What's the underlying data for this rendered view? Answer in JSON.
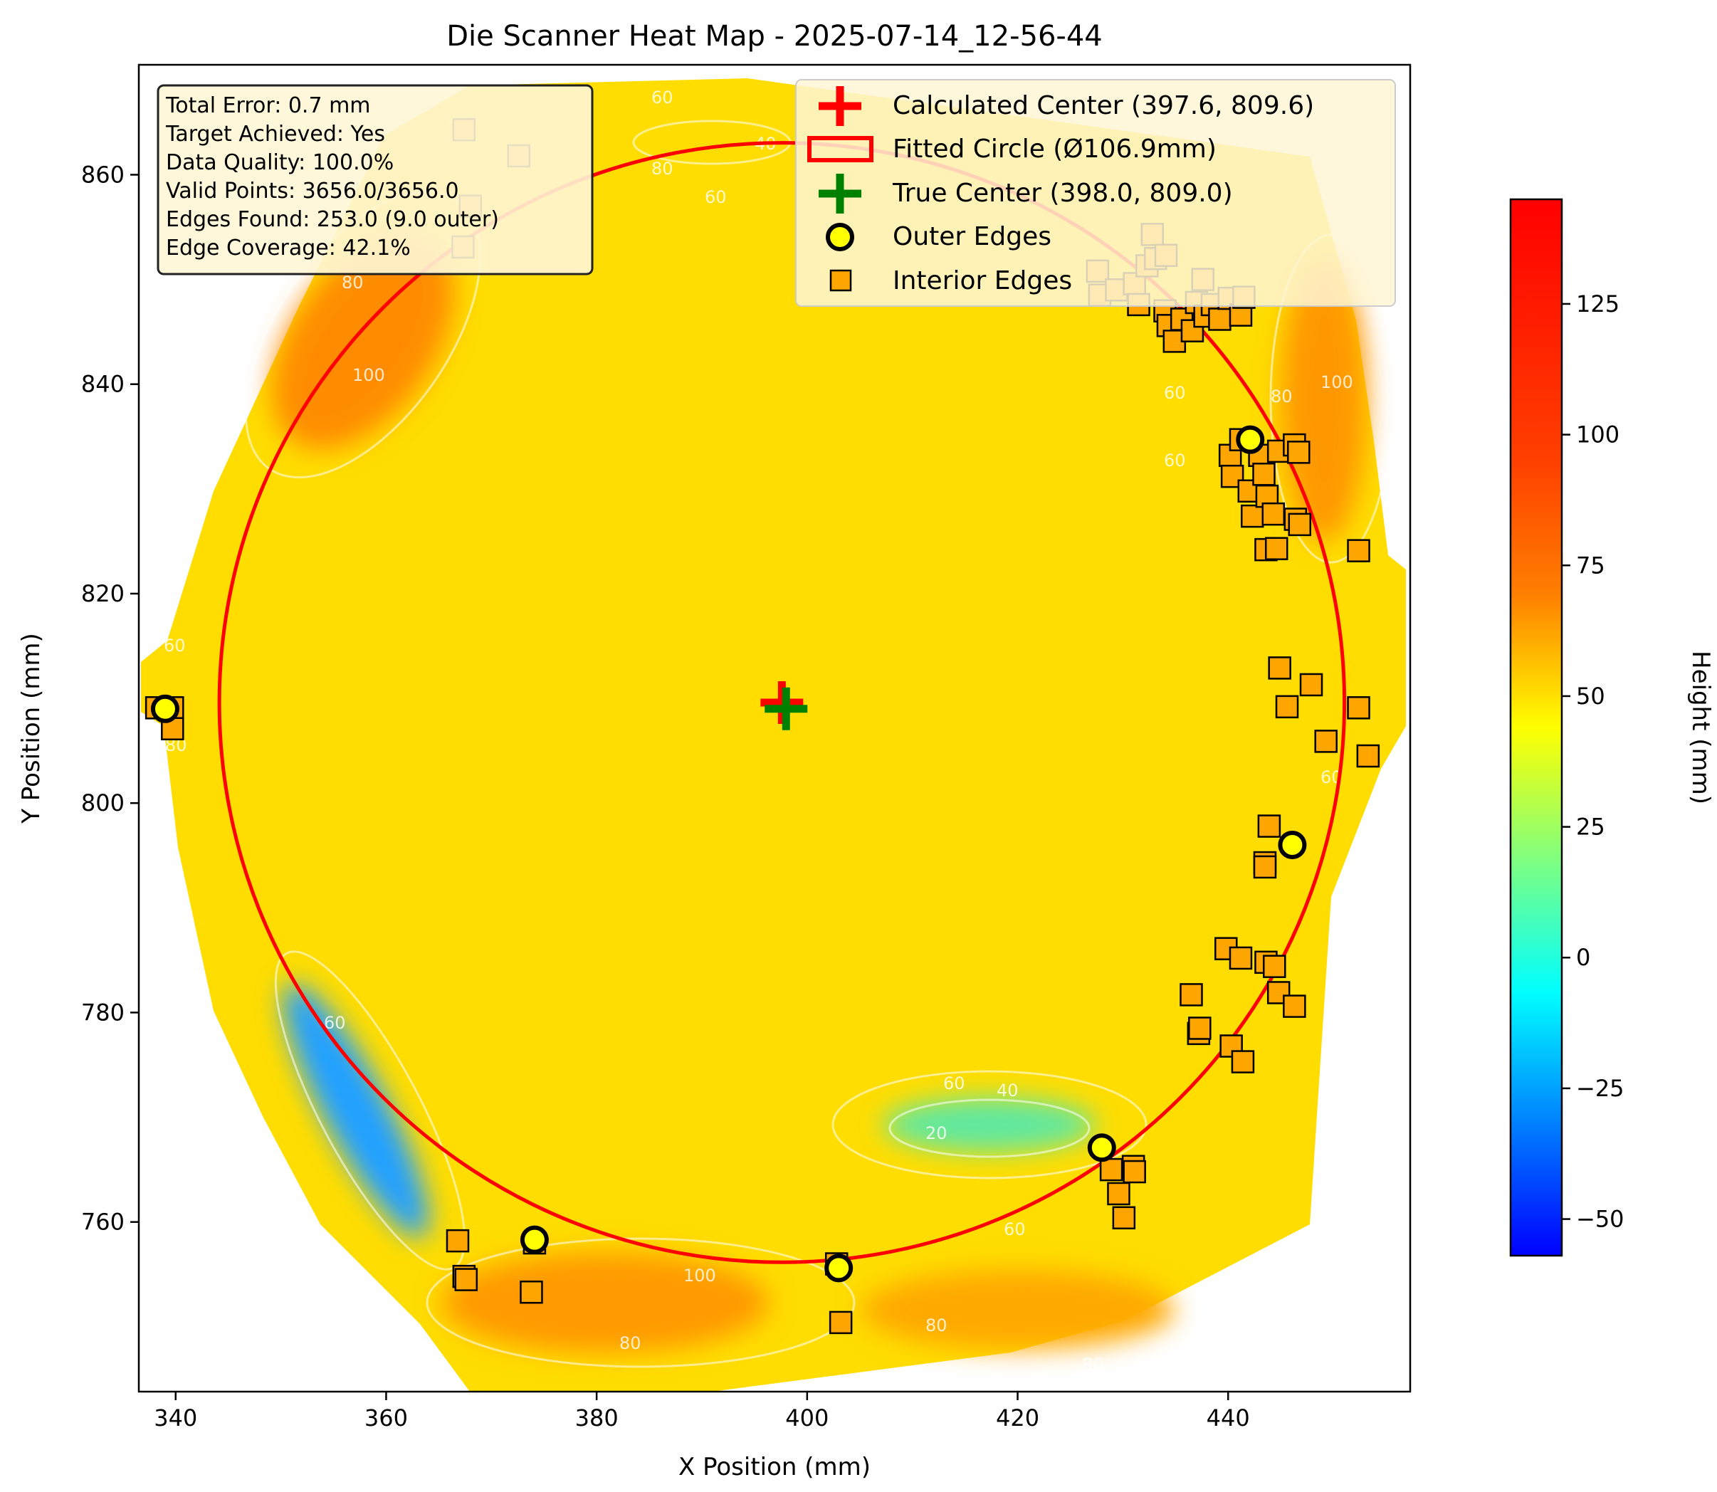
{
  "chart_data": {
    "type": "heatmap",
    "title": "Die Scanner Heat Map - 2025-07-14_12-56-44",
    "xlabel": "X Position (mm)",
    "ylabel": "Y Position (mm)",
    "xlim": [
      336.5,
      457.3
    ],
    "ylim": [
      743.8,
      870.5
    ],
    "x_ticks": [
      340,
      360,
      380,
      400,
      420,
      440
    ],
    "y_ticks": [
      760,
      780,
      800,
      820,
      840,
      860
    ],
    "grid": false,
    "legend_position": "top-right",
    "colorbar": {
      "label": "Height (mm)",
      "colormap": "jet",
      "range": [
        -57,
        145
      ],
      "ticks": [
        -50,
        -25,
        0,
        25,
        50,
        75,
        100,
        125
      ]
    },
    "heightmap_summary": {
      "base_height": 60,
      "high_regions": [
        {
          "x": 358,
          "y": 846,
          "height": 105
        },
        {
          "x": 447,
          "y": 840,
          "height": 100
        },
        {
          "x": 388,
          "y": 753,
          "height": 100
        },
        {
          "x": 428,
          "y": 754,
          "height": 85
        }
      ],
      "low_regions": [
        {
          "x": 418,
          "y": 769,
          "height": 15
        },
        {
          "x": 356,
          "y": 768,
          "height": -45
        }
      ]
    },
    "contour_levels": [
      20,
      40,
      60,
      80,
      100
    ],
    "stats_box": [
      "Total Error: 0.7 mm",
      "Target Achieved: Yes",
      "Data Quality: 100.0%",
      "Valid Points: 3656.0/3656.0",
      "Edges Found: 253.0 (9.0 outer)",
      "Edge Coverage: 42.1%"
    ],
    "legend": [
      "Calculated Center (397.6, 809.6)",
      "Fitted Circle (Ø106.9mm)",
      "True Center (398.0, 809.0)",
      "Outer Edges",
      "Interior Edges"
    ],
    "calculated_center": {
      "x": 397.6,
      "y": 809.6
    },
    "true_center": {
      "x": 398.0,
      "y": 809.0
    },
    "fitted_circle": {
      "cx": 397.6,
      "cy": 809.6,
      "diameter": 106.9
    },
    "outer_edges": [
      {
        "x": 339.0,
        "y": 809.0
      },
      {
        "x": 374.1,
        "y": 758.3
      },
      {
        "x": 403.0,
        "y": 755.6
      },
      {
        "x": 428.0,
        "y": 767.1
      },
      {
        "x": 446.1,
        "y": 796.0
      },
      {
        "x": 442.1,
        "y": 834.7
      }
    ],
    "interior_edges": [
      {
        "x": 338.2,
        "y": 809.1
      },
      {
        "x": 339.7,
        "y": 809.1
      },
      {
        "x": 339.7,
        "y": 807.1
      },
      {
        "x": 366.8,
        "y": 758.2
      },
      {
        "x": 367.4,
        "y": 754.8
      },
      {
        "x": 367.6,
        "y": 754.5
      },
      {
        "x": 374.1,
        "y": 758.0
      },
      {
        "x": 373.8,
        "y": 753.3
      },
      {
        "x": 402.8,
        "y": 756.0
      },
      {
        "x": 403.2,
        "y": 750.4
      },
      {
        "x": 428.9,
        "y": 765.0
      },
      {
        "x": 429.6,
        "y": 762.7
      },
      {
        "x": 430.1,
        "y": 760.4
      },
      {
        "x": 431.0,
        "y": 765.3
      },
      {
        "x": 431.1,
        "y": 764.8
      },
      {
        "x": 436.5,
        "y": 781.7
      },
      {
        "x": 437.2,
        "y": 778.0
      },
      {
        "x": 437.3,
        "y": 778.5
      },
      {
        "x": 439.8,
        "y": 786.1
      },
      {
        "x": 440.3,
        "y": 776.8
      },
      {
        "x": 441.2,
        "y": 785.2
      },
      {
        "x": 441.4,
        "y": 775.3
      },
      {
        "x": 443.6,
        "y": 784.8
      },
      {
        "x": 444.4,
        "y": 784.4
      },
      {
        "x": 444.8,
        "y": 781.9
      },
      {
        "x": 446.3,
        "y": 780.6
      },
      {
        "x": 443.5,
        "y": 794.3
      },
      {
        "x": 443.5,
        "y": 793.9
      },
      {
        "x": 443.9,
        "y": 797.8
      },
      {
        "x": 444.9,
        "y": 812.9
      },
      {
        "x": 445.6,
        "y": 809.2
      },
      {
        "x": 447.9,
        "y": 811.3
      },
      {
        "x": 449.3,
        "y": 805.9
      },
      {
        "x": 452.4,
        "y": 809.1
      },
      {
        "x": 452.4,
        "y": 824.1
      },
      {
        "x": 453.3,
        "y": 804.5
      },
      {
        "x": 440.2,
        "y": 833.2
      },
      {
        "x": 440.4,
        "y": 831.2
      },
      {
        "x": 441.2,
        "y": 834.7
      },
      {
        "x": 442.0,
        "y": 829.8
      },
      {
        "x": 442.3,
        "y": 827.4
      },
      {
        "x": 443.0,
        "y": 833.2
      },
      {
        "x": 443.4,
        "y": 831.4
      },
      {
        "x": 443.7,
        "y": 829.3
      },
      {
        "x": 443.6,
        "y": 824.2
      },
      {
        "x": 444.3,
        "y": 827.6
      },
      {
        "x": 444.6,
        "y": 824.3
      },
      {
        "x": 444.8,
        "y": 833.6
      },
      {
        "x": 446.3,
        "y": 834.2
      },
      {
        "x": 446.7,
        "y": 833.5
      },
      {
        "x": 446.4,
        "y": 827.1
      },
      {
        "x": 446.8,
        "y": 826.6
      },
      {
        "x": 427.6,
        "y": 850.8
      },
      {
        "x": 427.8,
        "y": 848.5
      },
      {
        "x": 429.4,
        "y": 849.0
      },
      {
        "x": 431.1,
        "y": 849.6
      },
      {
        "x": 431.5,
        "y": 847.6
      },
      {
        "x": 432.3,
        "y": 851.3
      },
      {
        "x": 433.1,
        "y": 852.0
      },
      {
        "x": 432.8,
        "y": 854.3
      },
      {
        "x": 434.1,
        "y": 852.3
      },
      {
        "x": 434.0,
        "y": 847.0
      },
      {
        "x": 434.3,
        "y": 845.6
      },
      {
        "x": 434.9,
        "y": 844.1
      },
      {
        "x": 435.6,
        "y": 846.2
      },
      {
        "x": 436.6,
        "y": 845.1
      },
      {
        "x": 437.0,
        "y": 847.8
      },
      {
        "x": 437.6,
        "y": 850.0
      },
      {
        "x": 437.8,
        "y": 846.5
      },
      {
        "x": 438.5,
        "y": 847.6
      },
      {
        "x": 439.2,
        "y": 846.2
      },
      {
        "x": 440.1,
        "y": 848.2
      },
      {
        "x": 441.2,
        "y": 846.6
      },
      {
        "x": 441.5,
        "y": 848.3
      },
      {
        "x": 367.4,
        "y": 864.3
      },
      {
        "x": 372.6,
        "y": 861.8
      },
      {
        "x": 368.0,
        "y": 857.0
      },
      {
        "x": 367.3,
        "y": 853.1
      }
    ]
  }
}
